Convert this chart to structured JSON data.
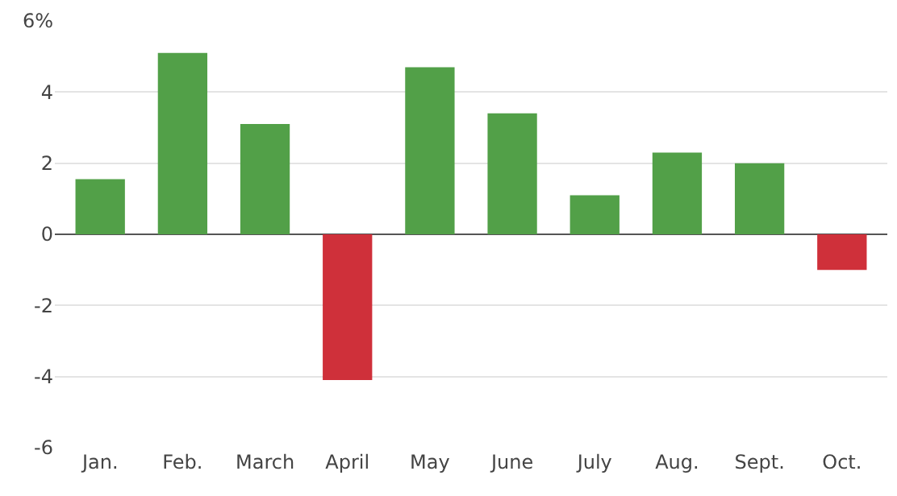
{
  "chart_data": {
    "type": "bar",
    "categories": [
      "Jan.",
      "Feb.",
      "March",
      "April",
      "May",
      "June",
      "July",
      "Aug.",
      "Sept.",
      "Oct."
    ],
    "values": [
      1.55,
      5.1,
      3.1,
      -4.1,
      4.7,
      3.4,
      1.1,
      2.3,
      2.0,
      -1.0
    ],
    "colors": [
      "#52a048",
      "#52a048",
      "#52a048",
      "#cf303a",
      "#52a048",
      "#52a048",
      "#52a048",
      "#52a048",
      "#52a048",
      "#cf303a"
    ],
    "ylim": [
      -6,
      6
    ],
    "yticks": [
      -6,
      -4,
      -2,
      0,
      2,
      4,
      {
        "value": 6,
        "label": "6%"
      }
    ],
    "grid": "y",
    "legend": false
  }
}
